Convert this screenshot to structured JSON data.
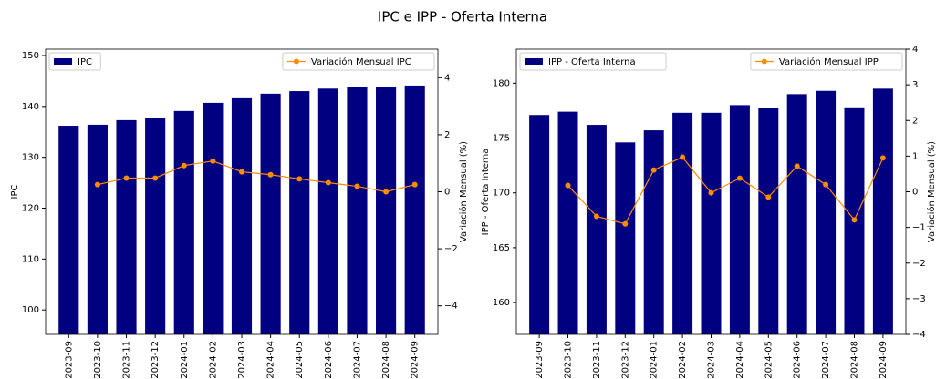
{
  "title": "IPC e IPP - Oferta Interna",
  "chart_data": [
    {
      "type": "bar",
      "ylabel": "IPC",
      "y2label": "Variación Mensual (%)",
      "categories": [
        "2023-09",
        "2023-10",
        "2023-11",
        "2023-12",
        "2024-01",
        "2024-02",
        "2024-03",
        "2024-04",
        "2024-05",
        "2024-06",
        "2024-07",
        "2024-08",
        "2024-09"
      ],
      "series": [
        {
          "name": "IPC",
          "color": "#000080",
          "legend": "upper left",
          "values": [
            136.2,
            136.4,
            137.3,
            137.8,
            139.1,
            140.7,
            141.6,
            142.5,
            143.0,
            143.5,
            143.9,
            143.9,
            144.1
          ]
        },
        {
          "name": "Variación Mensual IPC",
          "color": "#ff8c00",
          "axis": "y2",
          "legend": "upper right",
          "values": [
            null,
            0.25,
            0.48,
            0.48,
            0.92,
            1.08,
            0.7,
            0.6,
            0.45,
            0.32,
            0.19,
            0.0,
            0.25
          ]
        }
      ],
      "ylim": [
        95.2,
        151.25
      ],
      "yticks": [
        100,
        110,
        120,
        130,
        140,
        150
      ],
      "y2lim": [
        -5,
        5
      ],
      "y2ticks": [
        {
          "value": -4,
          "label": "−4"
        },
        {
          "value": -2,
          "label": "−2"
        },
        0,
        2,
        4
      ]
    },
    {
      "type": "bar",
      "ylabel": "IPP - Oferta Interna",
      "y2label": "Variación Mensual (%)",
      "categories": [
        "2023-09",
        "2023-10",
        "2023-11",
        "2023-12",
        "2024-01",
        "2024-02",
        "2024-03",
        "2024-04",
        "2024-05",
        "2024-06",
        "2024-07",
        "2024-08",
        "2024-09"
      ],
      "series": [
        {
          "name": "IPP - Oferta Interna",
          "color": "#000080",
          "legend": "upper left",
          "values": [
            177.1,
            177.4,
            176.2,
            174.6,
            175.7,
            177.3,
            177.3,
            178.0,
            177.7,
            179.0,
            179.3,
            177.8,
            179.5
          ]
        },
        {
          "name": "Variación Mensual IPP",
          "color": "#ff8c00",
          "axis": "y2",
          "legend": "upper right",
          "values": [
            null,
            0.18,
            -0.69,
            -0.9,
            0.61,
            0.97,
            -0.03,
            0.38,
            -0.15,
            0.72,
            0.2,
            -0.79,
            0.95
          ]
        }
      ],
      "ylim": [
        157.1,
        183.1
      ],
      "yticks": [
        160,
        165,
        170,
        175,
        180
      ],
      "y2lim": [
        -4,
        4
      ],
      "y2ticks": [
        {
          "value": -4,
          "label": "−4"
        },
        {
          "value": -3,
          "label": "−3"
        },
        {
          "value": -2,
          "label": "−2"
        },
        {
          "value": -1,
          "label": "−1"
        },
        0,
        1,
        2,
        3,
        4
      ]
    }
  ]
}
